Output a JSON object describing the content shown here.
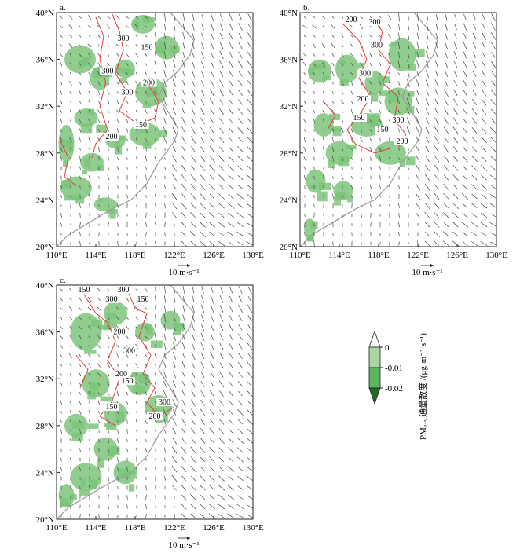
{
  "figure": {
    "panels": [
      {
        "label": "a.",
        "contour_labels": [
          "300",
          "150",
          "300",
          "200",
          "300",
          "150",
          "200"
        ]
      },
      {
        "label": "b.",
        "contour_labels": [
          "200",
          "300",
          "300",
          "300",
          "200",
          "150",
          "300",
          "150",
          "200"
        ]
      },
      {
        "label": "c.",
        "contour_labels": [
          "150",
          "300",
          "300",
          "150",
          "200",
          "300",
          "200",
          "150",
          "150",
          "300",
          "200"
        ]
      }
    ],
    "lat_ticks": [
      "20°N",
      "24°N",
      "28°N",
      "32°N",
      "36°N",
      "40°N"
    ],
    "lon_ticks": [
      "110°E",
      "114°E",
      "118°E",
      "122°E",
      "126°E",
      "130°E"
    ],
    "reference_vector": "10 m·s⁻¹",
    "colorbar": {
      "title": "PM₂.₅ 通量散度 /(μg·m⁻³·s⁻¹)",
      "ticks": [
        "0",
        "-0.01",
        "-0.02"
      ],
      "colors": [
        "#ffffff",
        "#a8d8a0",
        "#5bb55a",
        "#1f6b2a"
      ]
    },
    "colors": {
      "shade": "#7cc47a",
      "contour": "#e8383d",
      "coast": "#9a9a9a",
      "arrow": "#444444"
    }
  }
}
